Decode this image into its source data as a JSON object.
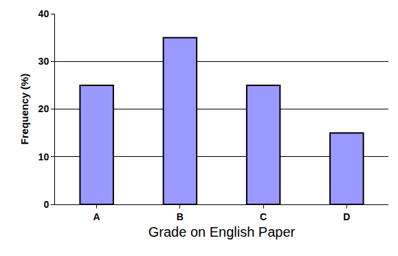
{
  "chart_data": {
    "type": "bar",
    "xlabel": "Grade on English Paper",
    "ylabel": "Frequency (%)",
    "categories": [
      "A",
      "B",
      "C",
      "D"
    ],
    "values": [
      25,
      35,
      25,
      15
    ],
    "color": "#9999ff",
    "ylim": [
      0,
      40
    ],
    "yticks": [
      0,
      10,
      20,
      30,
      40
    ],
    "grid": true
  }
}
